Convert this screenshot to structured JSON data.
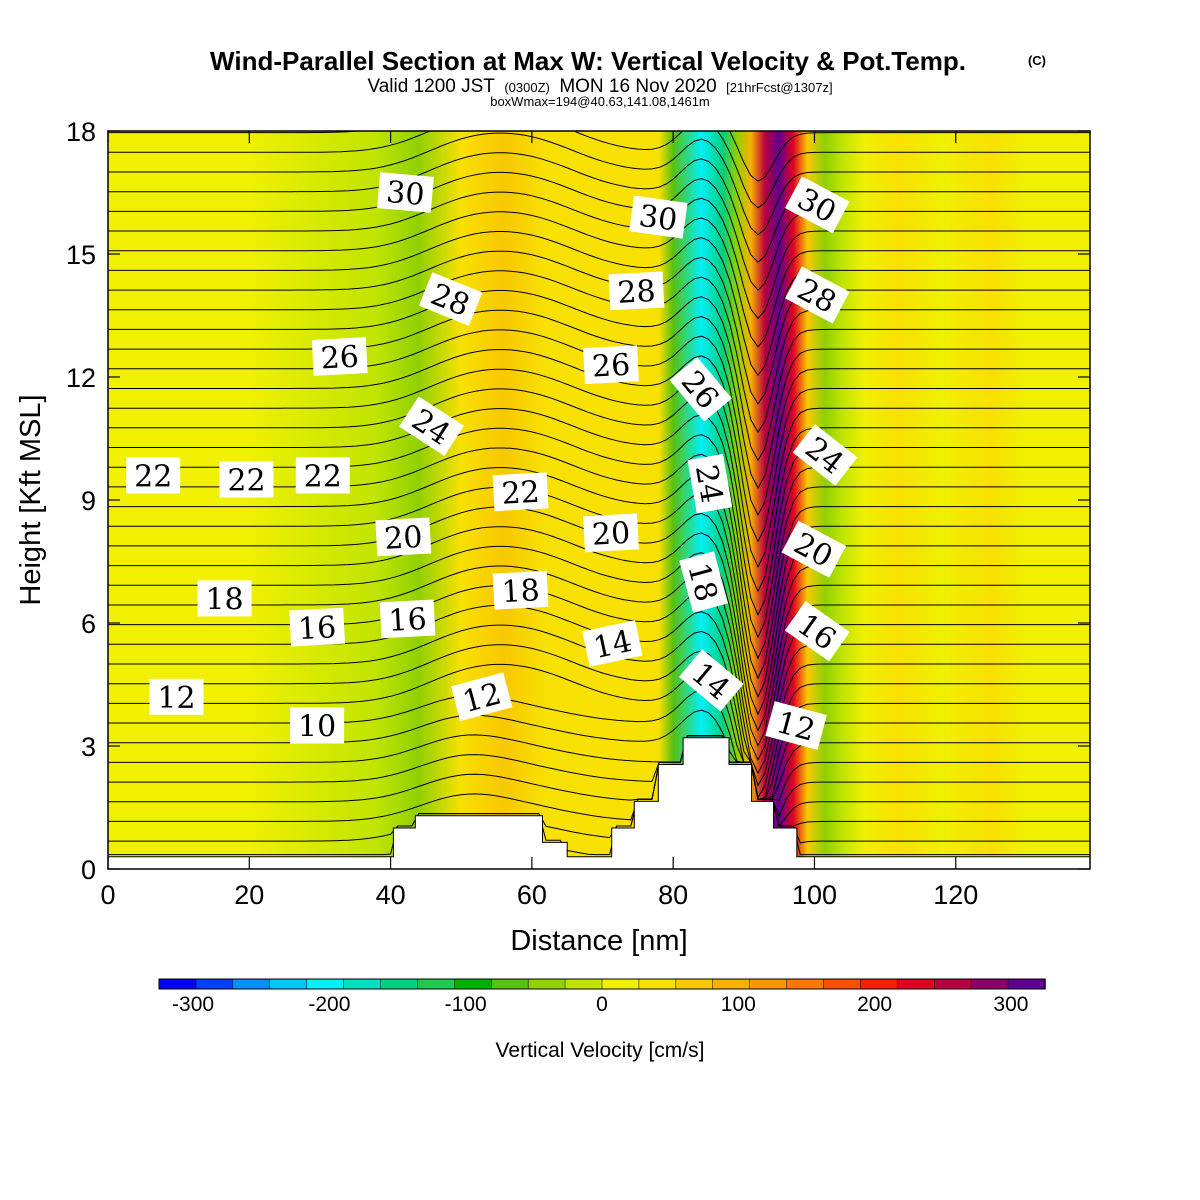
{
  "chart_data": {
    "type": "heatmap",
    "title": "Wind-Parallel Section at Max W: Vertical Velocity & Pot.Temp.",
    "title_mark": "(C)",
    "subtitle_parts": [
      "Valid 1200 JST",
      "(0300Z)",
      "MON 16 Nov 2020",
      "[21hrFcst@1307z]"
    ],
    "subtitle2": "boxWmax=194@40.63,141.08,1461m",
    "xlabel": "Distance [nm]",
    "ylabel": "Height [Kft MSL]",
    "xlim": [
      0,
      139
    ],
    "ylim": [
      0,
      18
    ],
    "x_ticks": [
      0,
      20,
      40,
      60,
      80,
      100,
      120
    ],
    "y_ticks": [
      0,
      3,
      6,
      9,
      12,
      15,
      18
    ],
    "grid": false,
    "colorbar": {
      "label": "Vertical Velocity [cm/s]",
      "tick_values": [
        -300,
        -200,
        -100,
        0,
        100,
        200,
        300
      ],
      "min": -325,
      "max": 325,
      "step": 25,
      "colors": [
        "#0000f0",
        "#0040f8",
        "#0090f8",
        "#00c8f8",
        "#00f0f8",
        "#00e0c0",
        "#00d080",
        "#20c850",
        "#00b000",
        "#58c010",
        "#90d000",
        "#c0e400",
        "#f0f000",
        "#f8e000",
        "#f8c800",
        "#f8b000",
        "#f89800",
        "#f87800",
        "#f85000",
        "#f82000",
        "#e00020",
        "#b80040",
        "#8c006c",
        "#600090"
      ]
    },
    "terrain_kft": [
      [
        0,
        0.3
      ],
      [
        40.4,
        0.3
      ],
      [
        40.4,
        1.0
      ],
      [
        43.5,
        1.0
      ],
      [
        43.5,
        1.3
      ],
      [
        61.5,
        1.3
      ],
      [
        61.5,
        0.65
      ],
      [
        65,
        0.65
      ],
      [
        65,
        0.3
      ],
      [
        71.3,
        0.3
      ],
      [
        71.3,
        1.0
      ],
      [
        74.5,
        1.0
      ],
      [
        74.5,
        1.65
      ],
      [
        77.9,
        1.65
      ],
      [
        77.9,
        2.55
      ],
      [
        81.4,
        2.55
      ],
      [
        81.4,
        3.2
      ],
      [
        87.9,
        3.2
      ],
      [
        87.9,
        2.55
      ],
      [
        91.1,
        2.55
      ],
      [
        91.1,
        1.65
      ],
      [
        94.2,
        1.65
      ],
      [
        94.2,
        1.0
      ],
      [
        97.5,
        1.0
      ],
      [
        97.5,
        0.3
      ],
      [
        139,
        0.3
      ]
    ],
    "vertical_velocity_bands_cms": [
      {
        "x": 0,
        "w": -20
      },
      {
        "x": 20,
        "w": -15
      },
      {
        "x": 38,
        "w": -30
      },
      {
        "x": 44,
        "w": -75
      },
      {
        "x": 50,
        "w": 10
      },
      {
        "x": 56,
        "w": 35
      },
      {
        "x": 62,
        "w": 20
      },
      {
        "x": 70,
        "w": 10
      },
      {
        "x": 78,
        "w": 10
      },
      {
        "x": 80,
        "w": -80
      },
      {
        "x": 84,
        "w": -210
      },
      {
        "x": 87,
        "w": -170
      },
      {
        "x": 89,
        "w": -60
      },
      {
        "x": 91,
        "w": 60
      },
      {
        "x": 93,
        "w": 220
      },
      {
        "x": 95,
        "w": 300
      },
      {
        "x": 97,
        "w": 180
      },
      {
        "x": 99,
        "w": 40
      },
      {
        "x": 101.5,
        "w": -60
      },
      {
        "x": 104,
        "w": -50
      },
      {
        "x": 107,
        "w": -15
      },
      {
        "x": 112,
        "w": 5
      },
      {
        "x": 118,
        "w": -10
      },
      {
        "x": 125,
        "w": 10
      },
      {
        "x": 130,
        "w": -10
      },
      {
        "x": 139,
        "w": -20
      }
    ],
    "potential_temperature_labels": [
      {
        "v": "30",
        "x": 42.1,
        "y": 16.5,
        "rot": 5
      },
      {
        "v": "30",
        "x": 77.9,
        "y": 15.9,
        "rot": 8
      },
      {
        "v": "30",
        "x": 100.4,
        "y": 16.2,
        "rot": 28
      },
      {
        "v": "28",
        "x": 48.5,
        "y": 13.9,
        "rot": 22
      },
      {
        "v": "28",
        "x": 74.8,
        "y": 14.1,
        "rot": -3
      },
      {
        "v": "28",
        "x": 100.4,
        "y": 14.0,
        "rot": 28
      },
      {
        "v": "26",
        "x": 32.8,
        "y": 12.5,
        "rot": -3
      },
      {
        "v": "26",
        "x": 71.2,
        "y": 12.3,
        "rot": -3
      },
      {
        "v": "26",
        "x": 83.9,
        "y": 11.7,
        "rot": 50
      },
      {
        "v": "24",
        "x": 45.8,
        "y": 10.8,
        "rot": 33
      },
      {
        "v": "24",
        "x": 101.5,
        "y": 10.1,
        "rot": 38
      },
      {
        "v": "24",
        "x": 85.2,
        "y": 9.4,
        "rot": 80
      },
      {
        "v": "22",
        "x": 6.4,
        "y": 9.6,
        "rot": 0
      },
      {
        "v": "22",
        "x": 19.6,
        "y": 9.5,
        "rot": 0
      },
      {
        "v": "22",
        "x": 30.4,
        "y": 9.6,
        "rot": 0
      },
      {
        "v": "22",
        "x": 58.4,
        "y": 9.2,
        "rot": -3
      },
      {
        "v": "20",
        "x": 41.8,
        "y": 8.1,
        "rot": -3
      },
      {
        "v": "20",
        "x": 71.2,
        "y": 8.2,
        "rot": -3
      },
      {
        "v": "20",
        "x": 99.9,
        "y": 7.8,
        "rot": 28
      },
      {
        "v": "18",
        "x": 16.5,
        "y": 6.6,
        "rot": 0
      },
      {
        "v": "18",
        "x": 58.4,
        "y": 6.8,
        "rot": -3
      },
      {
        "v": "18",
        "x": 84.3,
        "y": 7.0,
        "rot": 75
      },
      {
        "v": "16",
        "x": 29.6,
        "y": 5.9,
        "rot": -3
      },
      {
        "v": "16",
        "x": 42.4,
        "y": 6.1,
        "rot": -3
      },
      {
        "v": "16",
        "x": 100.4,
        "y": 5.8,
        "rot": 35
      },
      {
        "v": "14",
        "x": 71.4,
        "y": 5.5,
        "rot": -12
      },
      {
        "v": "14",
        "x": 85.4,
        "y": 4.6,
        "rot": 40
      },
      {
        "v": "12",
        "x": 9.7,
        "y": 4.2,
        "rot": 0
      },
      {
        "v": "12",
        "x": 52.9,
        "y": 4.2,
        "rot": -15
      },
      {
        "v": "12",
        "x": 97.4,
        "y": 3.5,
        "rot": 15
      },
      {
        "v": "10",
        "x": 29.6,
        "y": 3.5,
        "rot": 0
      }
    ]
  }
}
